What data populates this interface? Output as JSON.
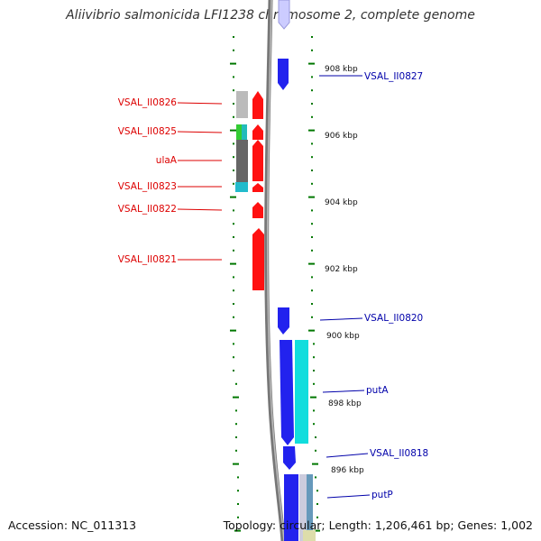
{
  "title": "Aliivibrio salmonicida LFI1238 chromosome 2, complete genome",
  "footer": {
    "accession": "Accession: NC_011313",
    "summary": "Topology: circular; Length: 1,206,461 bp; Genes: 1,002"
  },
  "colors": {
    "left_label": "#dd0000",
    "right_label": "#0000aa",
    "reverse_strand": "#2222ee",
    "forward_strand": "#ff1111",
    "tick": "#007700",
    "backbone": "#777777"
  },
  "kbp_labels": [
    "908 kbp",
    "906 kbp",
    "904 kbp",
    "902 kbp",
    "900 kbp",
    "898 kbp",
    "896 kbp"
  ],
  "left_labels": [
    "VSAL_II0826",
    "VSAL_II0825",
    "ulaA",
    "VSAL_II0823",
    "VSAL_II0822",
    "VSAL_II0821"
  ],
  "right_labels": [
    "VSAL_II0827",
    "VSAL_II0820",
    "putA",
    "VSAL_II0818",
    "putP"
  ]
}
